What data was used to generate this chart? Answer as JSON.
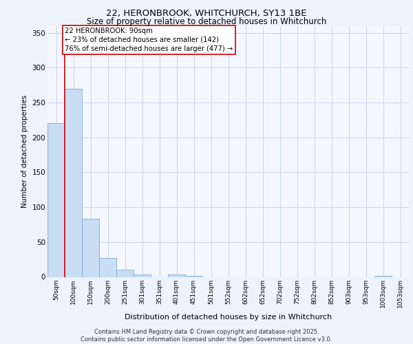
{
  "title_line1": "22, HERONBROOK, WHITCHURCH, SY13 1BE",
  "title_line2": "Size of property relative to detached houses in Whitchurch",
  "xlabel": "Distribution of detached houses by size in Whitchurch",
  "ylabel": "Number of detached properties",
  "categories": [
    "50sqm",
    "100sqm",
    "150sqm",
    "200sqm",
    "251sqm",
    "301sqm",
    "351sqm",
    "401sqm",
    "451sqm",
    "501sqm",
    "552sqm",
    "602sqm",
    "652sqm",
    "702sqm",
    "752sqm",
    "802sqm",
    "852sqm",
    "903sqm",
    "953sqm",
    "1003sqm",
    "1053sqm"
  ],
  "values": [
    220,
    270,
    83,
    27,
    10,
    3,
    0,
    3,
    1,
    0,
    0,
    0,
    0,
    0,
    0,
    0,
    0,
    0,
    0,
    1,
    0
  ],
  "bar_color": "#c9ddf5",
  "bar_edge_color": "#7aaad4",
  "vline_color": "#cc0000",
  "vline_x_idx": 0,
  "annotation_box_text": "22 HERONBROOK: 90sqm\n← 23% of detached houses are smaller (142)\n76% of semi-detached houses are larger (477) →",
  "ylim": [
    0,
    360
  ],
  "yticks": [
    0,
    50,
    100,
    150,
    200,
    250,
    300,
    350
  ],
  "footer_text": "Contains HM Land Registry data © Crown copyright and database right 2025.\nContains public sector information licensed under the Open Government Licence v3.0.",
  "bg_color": "#eef2fb",
  "plot_bg_color": "#f4f7fe",
  "grid_color": "#c0cce8"
}
